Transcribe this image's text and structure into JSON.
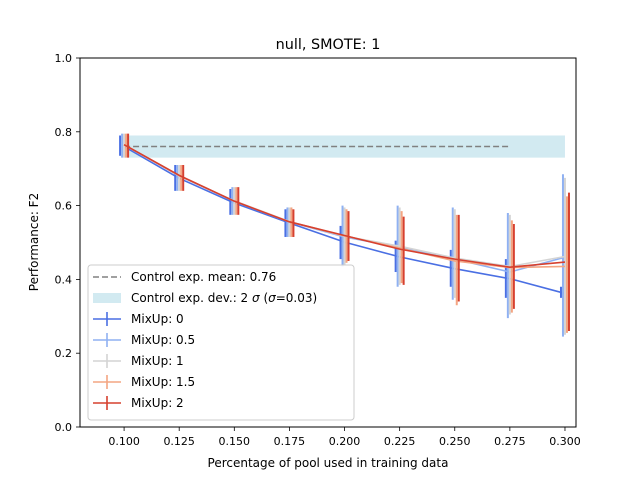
{
  "chart_data": {
    "type": "line",
    "title": "null, SMOTE: 1",
    "xlabel": "Percentage of pool used in training data",
    "ylabel": "Performance: F2",
    "xlim": [
      0.08,
      0.305
    ],
    "ylim": [
      0.0,
      1.0
    ],
    "xticks": [
      0.1,
      0.125,
      0.15,
      0.175,
      0.2,
      0.225,
      0.25,
      0.275,
      0.3
    ],
    "xtick_labels": [
      "0.100",
      "0.125",
      "0.150",
      "0.175",
      "0.200",
      "0.225",
      "0.250",
      "0.275",
      "0.300"
    ],
    "yticks": [
      0.0,
      0.2,
      0.4,
      0.6,
      0.8,
      1.0
    ],
    "ytick_labels": [
      "0.0",
      "0.2",
      "0.4",
      "0.6",
      "0.8",
      "1.0"
    ],
    "grid": false,
    "legend_position": "lower-left",
    "control": {
      "mean": 0.76,
      "mean_label": "Control exp. mean: 0.76",
      "band_low": 0.73,
      "band_high": 0.79,
      "band_x": [
        0.1,
        0.3
      ],
      "mean_x": [
        0.1,
        0.275
      ],
      "dev_label_prefix": "Control exp. dev.: 2 ",
      "dev_label_sigma": "σ",
      "dev_label_suffix": " (",
      "dev_label_sigma2": "σ",
      "dev_label_value": "=0.03)",
      "mean_color": "#808080",
      "band_color": "#add8e6"
    },
    "x": [
      0.1,
      0.125,
      0.15,
      0.175,
      0.2,
      0.225,
      0.25,
      0.275,
      0.3
    ],
    "series": [
      {
        "name": "MixUp: 0",
        "color": "#4a6fe3",
        "values": [
          0.76,
          0.674,
          0.607,
          0.553,
          0.501,
          0.461,
          0.429,
          0.402,
          0.362
        ],
        "err_low": [
          0.735,
          0.64,
          0.575,
          0.515,
          0.455,
          0.42,
          0.38,
          0.35,
          0.35
        ],
        "err_high": [
          0.79,
          0.71,
          0.645,
          0.59,
          0.545,
          0.505,
          0.48,
          0.455,
          0.38
        ]
      },
      {
        "name": "MixUp: 0.5",
        "color": "#8fb1f2",
        "values": [
          0.765,
          0.68,
          0.612,
          0.556,
          0.515,
          0.487,
          0.455,
          0.42,
          0.46
        ],
        "err_low": [
          0.73,
          0.64,
          0.575,
          0.515,
          0.435,
          0.38,
          0.345,
          0.295,
          0.245
        ],
        "err_high": [
          0.795,
          0.71,
          0.65,
          0.595,
          0.6,
          0.6,
          0.595,
          0.58,
          0.685
        ]
      },
      {
        "name": "MixUp: 1",
        "color": "#d4d4d4",
        "values": [
          0.765,
          0.681,
          0.613,
          0.557,
          0.517,
          0.49,
          0.458,
          0.435,
          0.462
        ],
        "err_low": [
          0.73,
          0.64,
          0.575,
          0.515,
          0.44,
          0.385,
          0.35,
          0.305,
          0.25
        ],
        "err_high": [
          0.795,
          0.71,
          0.65,
          0.595,
          0.595,
          0.595,
          0.59,
          0.575,
          0.675
        ]
      },
      {
        "name": "MixUp: 1.5",
        "color": "#f4a582",
        "values": [
          0.765,
          0.681,
          0.612,
          0.556,
          0.518,
          0.485,
          0.45,
          0.432,
          0.435
        ],
        "err_low": [
          0.73,
          0.64,
          0.575,
          0.515,
          0.445,
          0.39,
          0.33,
          0.31,
          0.255
        ],
        "err_high": [
          0.795,
          0.71,
          0.65,
          0.595,
          0.59,
          0.585,
          0.575,
          0.56,
          0.625
        ]
      },
      {
        "name": "MixUp: 2",
        "color": "#d6402f",
        "values": [
          0.765,
          0.682,
          0.612,
          0.556,
          0.519,
          0.482,
          0.455,
          0.433,
          0.447
        ],
        "err_low": [
          0.73,
          0.64,
          0.575,
          0.515,
          0.45,
          0.385,
          0.34,
          0.32,
          0.26
        ],
        "err_high": [
          0.795,
          0.71,
          0.65,
          0.59,
          0.585,
          0.57,
          0.575,
          0.55,
          0.635
        ]
      }
    ]
  }
}
